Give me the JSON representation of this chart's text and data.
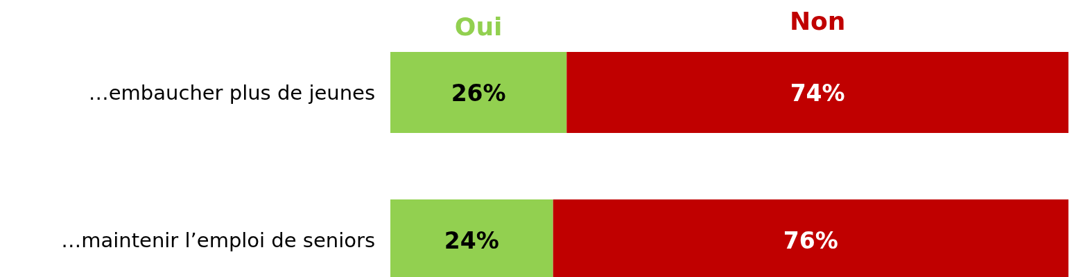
{
  "chart_data": {
    "type": "bar",
    "orientation": "horizontal",
    "stacked": true,
    "categories": [
      "…embaucher plus de jeunes",
      "…maintenir l’emploi de seniors"
    ],
    "series": [
      {
        "name": "Oui",
        "color": "#92d050",
        "values": [
          26,
          24
        ],
        "value_labels": [
          "26%",
          "24%"
        ]
      },
      {
        "name": "Non",
        "color": "#c00000",
        "values": [
          74,
          76
        ],
        "value_labels": [
          "74%",
          "76%"
        ]
      }
    ],
    "legend": "top"
  }
}
